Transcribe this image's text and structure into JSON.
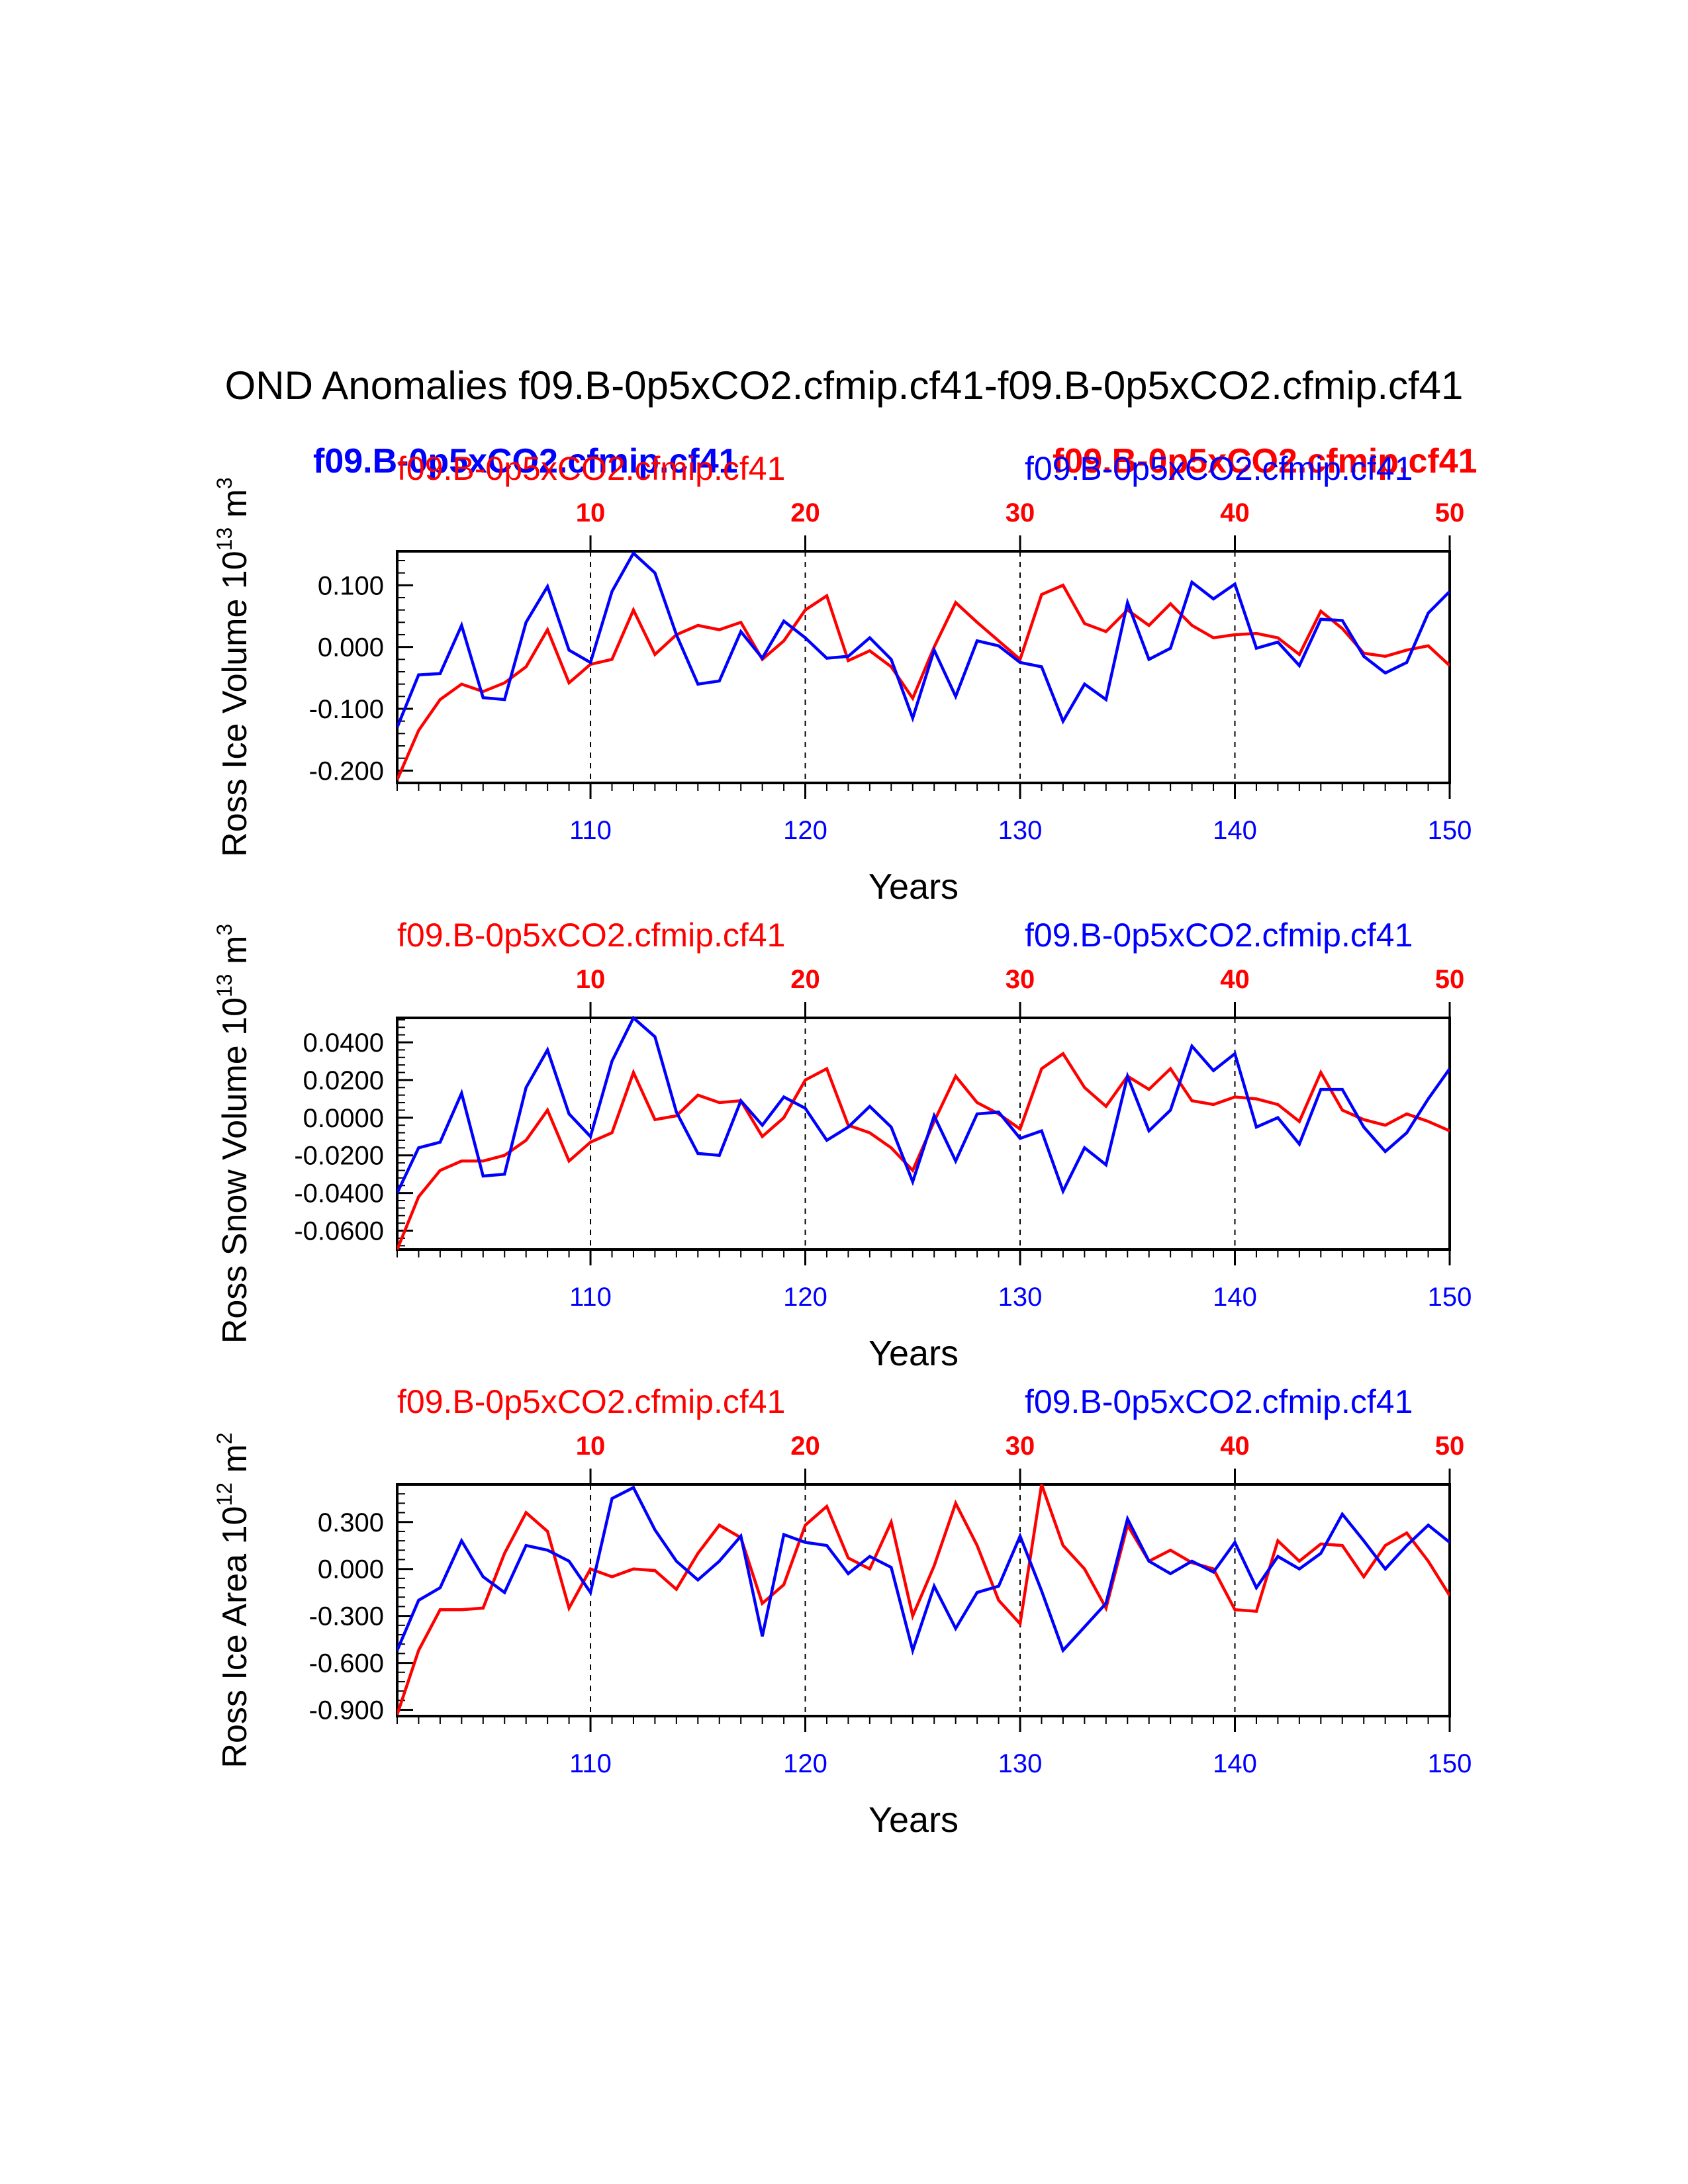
{
  "title": "OND Anomalies f09.B-0p5xCO2.cfmip.cf41-f09.B-0p5xCO2.cfmip.cf41",
  "legend": {
    "left_bold": "f09.B-0p5xCO2.cfmip.cf41",
    "right_bold": "f09.B-0p5xCO2.cfmip.cf41"
  },
  "colors": {
    "series_a": "#ff0000",
    "series_b": "#0000ff",
    "axis": "#000000"
  },
  "chart_data": [
    {
      "type": "line",
      "ylabel_main": "Ross Ice Volume 10",
      "ylabel_exp": "13",
      "ylabel_unit": " m",
      "ylabel_unit_exp": "3",
      "xlabel": "Years",
      "top_left_label": "f09.B-0p5xCO2.cfmip.cf41",
      "top_right_label": "f09.B-0p5xCO2.cfmip.cf41",
      "xlim": [
        101,
        150
      ],
      "ylim": [
        -0.22,
        0.155
      ],
      "yticks": [
        0.1,
        0.0,
        -0.1,
        -0.2
      ],
      "ytick_labels": [
        "0.100",
        "0.000",
        "-0.100",
        "-0.200"
      ],
      "ytick_minor": 0.02,
      "xticks_bottom": [
        110,
        120,
        130,
        140,
        150
      ],
      "xticks_top": [
        "10",
        "20",
        "30",
        "40",
        "50"
      ],
      "x": [
        101,
        102,
        103,
        104,
        105,
        106,
        107,
        108,
        109,
        110,
        111,
        112,
        113,
        114,
        115,
        116,
        117,
        118,
        119,
        120,
        121,
        122,
        123,
        124,
        125,
        126,
        127,
        128,
        129,
        130,
        131,
        132,
        133,
        134,
        135,
        136,
        137,
        138,
        139,
        140,
        141,
        142,
        143,
        144,
        145,
        146,
        147,
        148,
        149,
        150
      ],
      "series": [
        {
          "name": "f09.B-0p5xCO2.cfmip.cf41",
          "color": "#ff0000",
          "values": [
            -0.215,
            -0.135,
            -0.085,
            -0.06,
            -0.072,
            -0.058,
            -0.032,
            0.028,
            -0.058,
            -0.028,
            -0.02,
            0.06,
            -0.012,
            0.02,
            0.035,
            0.028,
            0.04,
            -0.02,
            0.01,
            0.06,
            0.083,
            -0.022,
            -0.006,
            -0.032,
            -0.083,
            0.0,
            0.072,
            0.04,
            0.01,
            -0.02,
            0.085,
            0.1,
            0.038,
            0.025,
            0.06,
            0.035,
            0.07,
            0.035,
            0.015,
            0.02,
            0.022,
            0.015,
            -0.012,
            0.058,
            0.03,
            -0.01,
            -0.015,
            -0.005,
            0.002,
            -0.03
          ]
        },
        {
          "name": "f09.B-0p5xCO2.cfmip.cf41",
          "color": "#0000ff",
          "values": [
            -0.13,
            -0.045,
            -0.043,
            0.035,
            -0.082,
            -0.085,
            0.04,
            0.098,
            -0.005,
            -0.025,
            0.09,
            0.152,
            0.12,
            0.02,
            -0.06,
            -0.055,
            0.025,
            -0.018,
            0.042,
            0.015,
            -0.018,
            -0.015,
            0.015,
            -0.02,
            -0.115,
            -0.005,
            -0.08,
            0.01,
            0.002,
            -0.025,
            -0.032,
            -0.12,
            -0.06,
            -0.085,
            0.072,
            -0.02,
            -0.002,
            0.105,
            0.078,
            0.102,
            -0.002,
            0.008,
            -0.03,
            0.045,
            0.043,
            -0.015,
            -0.042,
            -0.025,
            0.055,
            0.09
          ]
        }
      ]
    },
    {
      "type": "line",
      "ylabel_main": "Ross Snow Volume 10",
      "ylabel_exp": "13",
      "ylabel_unit": " m",
      "ylabel_unit_exp": "3",
      "xlabel": "Years",
      "top_left_label": "f09.B-0p5xCO2.cfmip.cf41",
      "top_right_label": "f09.B-0p5xCO2.cfmip.cf41",
      "xlim": [
        101,
        150
      ],
      "ylim": [
        -0.07,
        0.053
      ],
      "yticks": [
        0.04,
        0.02,
        0.0,
        -0.02,
        -0.04,
        -0.06
      ],
      "ytick_labels": [
        "0.0400",
        "0.0200",
        "0.0000",
        "-0.0200",
        "-0.0400",
        "-0.0600"
      ],
      "ytick_minor": 0.004,
      "xticks_bottom": [
        110,
        120,
        130,
        140,
        150
      ],
      "xticks_top": [
        "10",
        "20",
        "30",
        "40",
        "50"
      ],
      "x": [
        101,
        102,
        103,
        104,
        105,
        106,
        107,
        108,
        109,
        110,
        111,
        112,
        113,
        114,
        115,
        116,
        117,
        118,
        119,
        120,
        121,
        122,
        123,
        124,
        125,
        126,
        127,
        128,
        129,
        130,
        131,
        132,
        133,
        134,
        135,
        136,
        137,
        138,
        139,
        140,
        141,
        142,
        143,
        144,
        145,
        146,
        147,
        148,
        149,
        150
      ],
      "series": [
        {
          "name": "f09.B-0p5xCO2.cfmip.cf41",
          "color": "#ff0000",
          "values": [
            -0.07,
            -0.042,
            -0.028,
            -0.023,
            -0.023,
            -0.02,
            -0.012,
            0.004,
            -0.023,
            -0.013,
            -0.008,
            0.024,
            -0.001,
            0.001,
            0.012,
            0.008,
            0.009,
            -0.01,
            0.0,
            0.02,
            0.026,
            -0.004,
            -0.008,
            -0.016,
            -0.028,
            -0.002,
            0.022,
            0.008,
            0.002,
            -0.006,
            0.026,
            0.034,
            0.016,
            0.006,
            0.022,
            0.015,
            0.026,
            0.009,
            0.007,
            0.011,
            0.01,
            0.007,
            -0.002,
            0.024,
            0.004,
            -0.001,
            -0.004,
            0.002,
            -0.002,
            -0.007
          ]
        },
        {
          "name": "f09.B-0p5xCO2.cfmip.cf41",
          "color": "#0000ff",
          "values": [
            -0.04,
            -0.016,
            -0.013,
            0.013,
            -0.031,
            -0.03,
            0.016,
            0.036,
            0.002,
            -0.01,
            0.03,
            0.053,
            0.043,
            0.003,
            -0.019,
            -0.02,
            0.009,
            -0.004,
            0.011,
            0.005,
            -0.012,
            -0.005,
            0.006,
            -0.005,
            -0.034,
            0.001,
            -0.023,
            0.002,
            0.003,
            -0.011,
            -0.007,
            -0.039,
            -0.016,
            -0.025,
            0.022,
            -0.007,
            0.004,
            0.038,
            0.025,
            0.034,
            -0.005,
            0.0,
            -0.014,
            0.015,
            0.015,
            -0.005,
            -0.018,
            -0.008,
            0.01,
            0.026
          ]
        }
      ]
    },
    {
      "type": "line",
      "ylabel_main": "Ross Ice Area 10",
      "ylabel_exp": "12",
      "ylabel_unit": " m",
      "ylabel_unit_exp": "2",
      "xlabel": "Years",
      "top_left_label": "f09.B-0p5xCO2.cfmip.cf41",
      "top_right_label": "f09.B-0p5xCO2.cfmip.cf41",
      "xlim": [
        101,
        150
      ],
      "ylim": [
        -0.94,
        0.54
      ],
      "yticks": [
        0.3,
        0.0,
        -0.3,
        -0.6,
        -0.9
      ],
      "ytick_labels": [
        "0.300",
        "0.000",
        "-0.300",
        "-0.600",
        "-0.900"
      ],
      "ytick_minor": 0.06,
      "xticks_bottom": [
        110,
        120,
        130,
        140,
        150
      ],
      "xticks_top": [
        "10",
        "20",
        "30",
        "40",
        "50"
      ],
      "x": [
        101,
        102,
        103,
        104,
        105,
        106,
        107,
        108,
        109,
        110,
        111,
        112,
        113,
        114,
        115,
        116,
        117,
        118,
        119,
        120,
        121,
        122,
        123,
        124,
        125,
        126,
        127,
        128,
        129,
        130,
        131,
        132,
        133,
        134,
        135,
        136,
        137,
        138,
        139,
        140,
        141,
        142,
        143,
        144,
        145,
        146,
        147,
        148,
        149,
        150
      ],
      "series": [
        {
          "name": "f09.B-0p5xCO2.cfmip.cf41",
          "color": "#ff0000",
          "values": [
            -0.93,
            -0.52,
            -0.26,
            -0.26,
            -0.25,
            0.1,
            0.36,
            0.24,
            -0.25,
            0.0,
            -0.05,
            0.0,
            -0.01,
            -0.13,
            0.1,
            0.28,
            0.2,
            -0.22,
            -0.1,
            0.28,
            0.4,
            0.07,
            0.0,
            0.3,
            -0.3,
            0.02,
            0.42,
            0.15,
            -0.2,
            -0.35,
            0.54,
            0.15,
            0.0,
            -0.25,
            0.28,
            0.05,
            0.12,
            0.04,
            0.0,
            -0.26,
            -0.27,
            0.18,
            0.05,
            0.16,
            0.15,
            -0.05,
            0.15,
            0.23,
            0.05,
            -0.17
          ]
        },
        {
          "name": "f09.B-0p5xCO2.cfmip.cf41",
          "color": "#0000ff",
          "values": [
            -0.52,
            -0.2,
            -0.12,
            0.18,
            -0.05,
            -0.15,
            0.15,
            0.12,
            0.05,
            -0.15,
            0.45,
            0.52,
            0.25,
            0.05,
            -0.07,
            0.05,
            0.21,
            -0.43,
            0.22,
            0.17,
            0.15,
            -0.03,
            0.08,
            0.01,
            -0.52,
            -0.11,
            -0.38,
            -0.15,
            -0.11,
            0.21,
            -0.14,
            -0.52,
            -0.37,
            -0.22,
            0.32,
            0.05,
            -0.03,
            0.05,
            -0.02,
            0.17,
            -0.12,
            0.08,
            0.0,
            0.1,
            0.35,
            0.18,
            0.0,
            0.15,
            0.28,
            0.17
          ]
        }
      ]
    }
  ]
}
